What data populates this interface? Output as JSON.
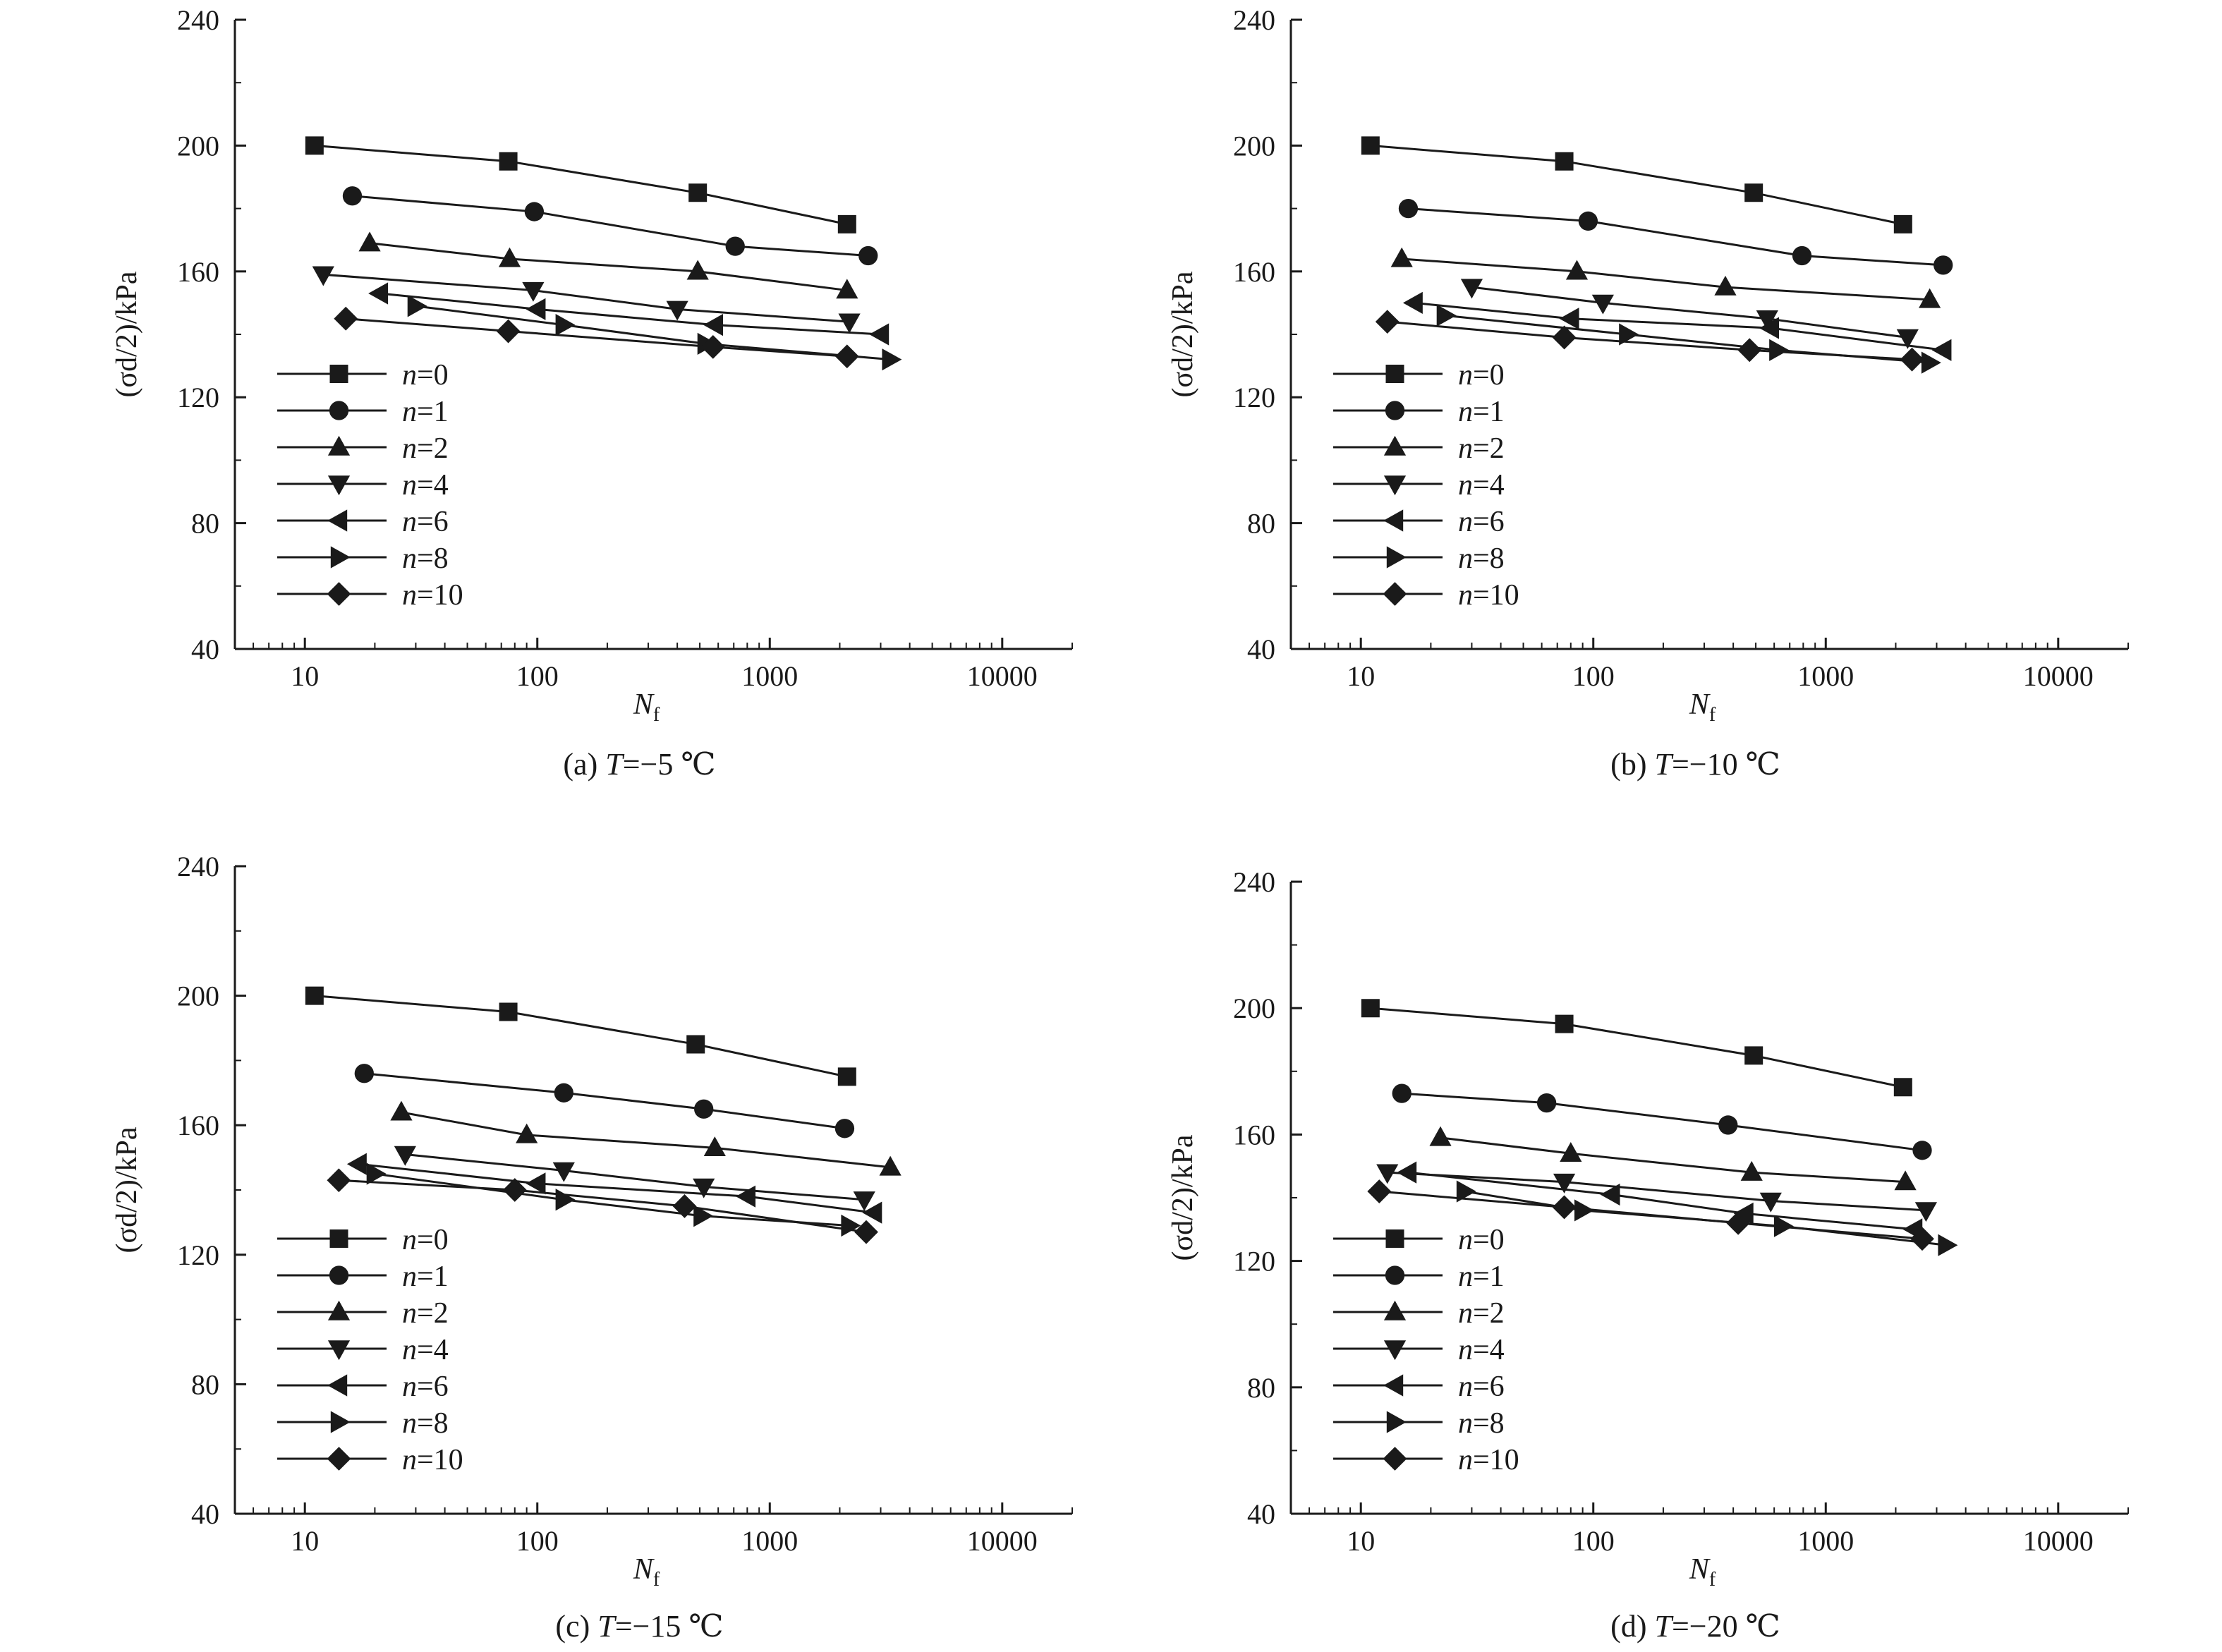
{
  "chart_data": [
    {
      "type": "line",
      "caption": "(a) T=−5 ℃",
      "caption_prefix": "(a) ",
      "caption_var": "T",
      "caption_suffix": "=−5 ℃",
      "xlabel": "N",
      "xlabel_sub": "f",
      "ylabel": "(σd/2)/kPa",
      "xscale": "log",
      "xlim": [
        5,
        20000
      ],
      "ylim": [
        40,
        240
      ],
      "xticks": [
        "10",
        "100",
        "1000",
        "10000"
      ],
      "yticks": [
        "40",
        "80",
        "120",
        "160",
        "200",
        "240"
      ],
      "legend_position": "lower-left",
      "series": [
        {
          "name": "n=0",
          "marker": "square",
          "points": [
            [
              11,
              200
            ],
            [
              75,
              195
            ],
            [
              490,
              185
            ],
            [
              2150,
              175
            ]
          ]
        },
        {
          "name": "n=1",
          "marker": "circle",
          "points": [
            [
              16,
              184
            ],
            [
              97,
              179
            ],
            [
              710,
              168
            ],
            [
              2650,
              165
            ]
          ]
        },
        {
          "name": "n=2",
          "marker": "triangle-up",
          "points": [
            [
              19,
              169
            ],
            [
              76,
              164
            ],
            [
              490,
              160
            ],
            [
              2150,
              154
            ]
          ]
        },
        {
          "name": "n=4",
          "marker": "triangle-down",
          "points": [
            [
              12,
              159
            ],
            [
              96,
              154
            ],
            [
              400,
              148
            ],
            [
              2200,
              144
            ]
          ]
        },
        {
          "name": "n=6",
          "marker": "triangle-left",
          "points": [
            [
              21,
              153
            ],
            [
              100,
              148
            ],
            [
              580,
              143
            ],
            [
              3000,
              140
            ]
          ]
        },
        {
          "name": "n=8",
          "marker": "triangle-right",
          "points": [
            [
              30,
              149
            ],
            [
              130,
              143
            ],
            [
              530,
              137
            ],
            [
              3300,
              132
            ]
          ]
        },
        {
          "name": "n=10",
          "marker": "diamond",
          "points": [
            [
              15,
              145
            ],
            [
              75,
              141
            ],
            [
              570,
              136
            ],
            [
              2150,
              133
            ]
          ]
        }
      ]
    },
    {
      "type": "line",
      "caption": "(b) T=−10 ℃",
      "caption_prefix": "(b) ",
      "caption_var": "T",
      "caption_suffix": "=−10 ℃",
      "xlabel": "N",
      "xlabel_sub": "f",
      "ylabel": "(σd/2)/kPa",
      "xscale": "log",
      "xlim": [
        5,
        20000
      ],
      "ylim": [
        40,
        240
      ],
      "xticks": [
        "10",
        "100",
        "1000",
        "10000"
      ],
      "yticks": [
        "40",
        "80",
        "120",
        "160",
        "200",
        "240"
      ],
      "legend_position": "lower-left",
      "series": [
        {
          "name": "n=0",
          "marker": "square",
          "points": [
            [
              11,
              200
            ],
            [
              75,
              195
            ],
            [
              490,
              185
            ],
            [
              2150,
              175
            ]
          ]
        },
        {
          "name": "n=1",
          "marker": "circle",
          "points": [
            [
              16,
              180
            ],
            [
              95,
              176
            ],
            [
              790,
              165
            ],
            [
              3200,
              162
            ]
          ]
        },
        {
          "name": "n=2",
          "marker": "triangle-up",
          "points": [
            [
              15,
              164
            ],
            [
              85,
              160
            ],
            [
              370,
              155
            ],
            [
              2800,
              151
            ]
          ]
        },
        {
          "name": "n=4",
          "marker": "triangle-down",
          "points": [
            [
              30,
              155
            ],
            [
              110,
              150
            ],
            [
              560,
              145
            ],
            [
              2250,
              139
            ]
          ]
        },
        {
          "name": "n=6",
          "marker": "triangle-left",
          "points": [
            [
              17,
              150
            ],
            [
              80,
              145
            ],
            [
              580,
              142
            ],
            [
              3200,
              135
            ]
          ]
        },
        {
          "name": "n=8",
          "marker": "triangle-right",
          "points": [
            [
              23,
              146
            ],
            [
              140,
              140
            ],
            [
              620,
              135
            ],
            [
              2800,
              131
            ]
          ]
        },
        {
          "name": "n=10",
          "marker": "diamond",
          "points": [
            [
              13,
              144
            ],
            [
              75,
              139
            ],
            [
              470,
              135
            ],
            [
              2350,
              132
            ]
          ]
        }
      ]
    },
    {
      "type": "line",
      "caption": "(c) T=−15 ℃",
      "caption_prefix": "(c) ",
      "caption_var": "T",
      "caption_suffix": "=−15 ℃",
      "xlabel": "N",
      "xlabel_sub": "f",
      "ylabel": "(σd/2)/kPa",
      "xscale": "log",
      "xlim": [
        5,
        20000
      ],
      "ylim": [
        40,
        240
      ],
      "xticks": [
        "10",
        "100",
        "1000",
        "10000"
      ],
      "yticks": [
        "40",
        "80",
        "120",
        "160",
        "200",
        "240"
      ],
      "legend_position": "lower-left",
      "series": [
        {
          "name": "n=0",
          "marker": "square",
          "points": [
            [
              11,
              200
            ],
            [
              75,
              195
            ],
            [
              480,
              185
            ],
            [
              2150,
              175
            ]
          ]
        },
        {
          "name": "n=1",
          "marker": "circle",
          "points": [
            [
              18,
              176
            ],
            [
              130,
              170
            ],
            [
              520,
              165
            ],
            [
              2100,
              159
            ]
          ]
        },
        {
          "name": "n=2",
          "marker": "triangle-up",
          "points": [
            [
              26,
              164
            ],
            [
              90,
              157
            ],
            [
              580,
              153
            ],
            [
              3300,
              147
            ]
          ]
        },
        {
          "name": "n=4",
          "marker": "triangle-down",
          "points": [
            [
              27,
              151
            ],
            [
              130,
              146
            ],
            [
              520,
              141
            ],
            [
              2550,
              137
            ]
          ]
        },
        {
          "name": "n=6",
          "marker": "triangle-left",
          "points": [
            [
              17,
              148
            ],
            [
              100,
              142
            ],
            [
              800,
              138
            ],
            [
              2800,
              133
            ]
          ]
        },
        {
          "name": "n=8",
          "marker": "triangle-right",
          "points": [
            [
              20,
              145
            ],
            [
              130,
              137
            ],
            [
              510,
              132
            ],
            [
              2200,
              129
            ]
          ]
        },
        {
          "name": "n=10",
          "marker": "diamond",
          "points": [
            [
              14,
              143
            ],
            [
              80,
              140
            ],
            [
              430,
              135
            ],
            [
              2600,
              127
            ]
          ]
        }
      ]
    },
    {
      "type": "line",
      "caption": "(d) T=−20 ℃",
      "caption_prefix": "(d) ",
      "caption_var": "T",
      "caption_suffix": "=−20 ℃",
      "xlabel": "N",
      "xlabel_sub": "f",
      "ylabel": "(σd/2)/kPa",
      "xscale": "log",
      "xlim": [
        5,
        20000
      ],
      "ylim": [
        40,
        240
      ],
      "xticks": [
        "10",
        "100",
        "1000",
        "10000"
      ],
      "yticks": [
        "40",
        "80",
        "120",
        "160",
        "200",
        "240"
      ],
      "legend_position": "lower-left",
      "series": [
        {
          "name": "n=0",
          "marker": "square",
          "points": [
            [
              11,
              200
            ],
            [
              75,
              195
            ],
            [
              490,
              185
            ],
            [
              2150,
              175
            ]
          ]
        },
        {
          "name": "n=1",
          "marker": "circle",
          "points": [
            [
              15,
              173
            ],
            [
              63,
              170
            ],
            [
              380,
              163
            ],
            [
              2600,
              155
            ]
          ]
        },
        {
          "name": "n=2",
          "marker": "triangle-up",
          "points": [
            [
              22,
              159
            ],
            [
              80,
              154
            ],
            [
              480,
              148
            ],
            [
              2200,
              145
            ]
          ]
        },
        {
          "name": "n=4",
          "marker": "triangle-down",
          "points": [
            [
              13,
              148
            ],
            [
              75,
              145
            ],
            [
              580,
              139
            ],
            [
              2700,
              136
            ]
          ]
        },
        {
          "name": "n=6",
          "marker": "triangle-left",
          "points": [
            [
              16,
              148
            ],
            [
              120,
              141
            ],
            [
              450,
              135
            ],
            [
              2400,
              130
            ]
          ]
        },
        {
          "name": "n=8",
          "marker": "triangle-right",
          "points": [
            [
              28,
              142
            ],
            [
              90,
              136
            ],
            [
              650,
              131
            ],
            [
              3300,
              125
            ]
          ]
        },
        {
          "name": "n=10",
          "marker": "diamond",
          "points": [
            [
              12,
              142
            ],
            [
              75,
              137
            ],
            [
              420,
              132
            ],
            [
              2600,
              127
            ]
          ]
        }
      ]
    }
  ]
}
